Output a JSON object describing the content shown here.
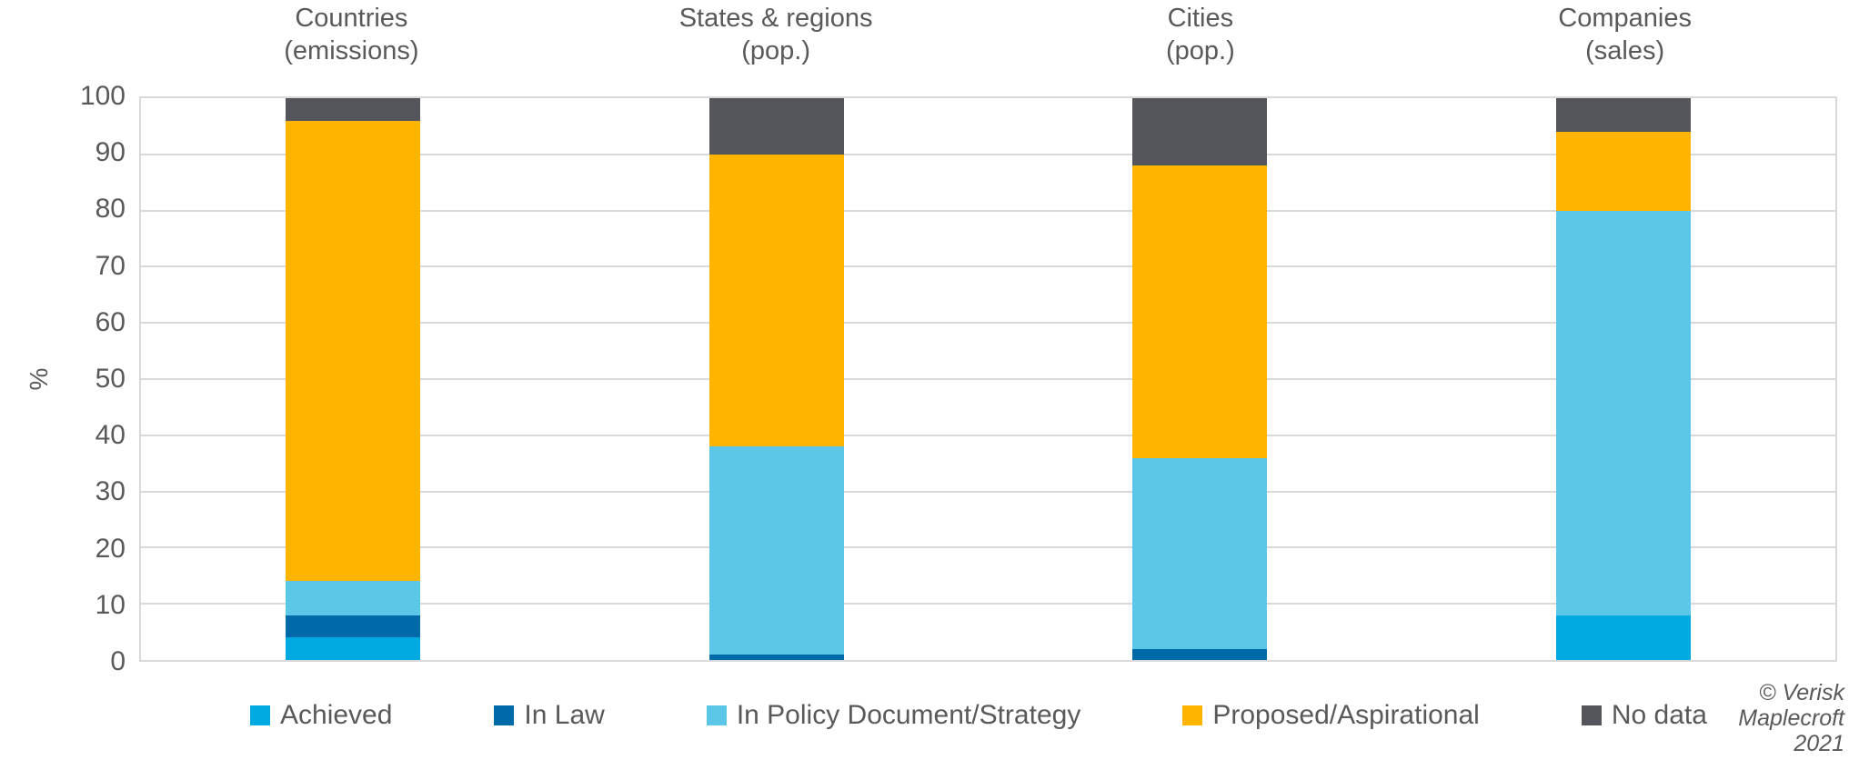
{
  "chart_data": {
    "type": "bar",
    "stacked": true,
    "title": "",
    "ylabel": "%",
    "ylim": [
      0,
      100
    ],
    "yticks": [
      0,
      10,
      20,
      30,
      40,
      50,
      60,
      70,
      80,
      90,
      100
    ],
    "grid": true,
    "legend_position": "bottom",
    "categories": [
      {
        "line1": "Countries",
        "line2": "(emissions)"
      },
      {
        "line1": "States & regions",
        "line2": "(pop.)"
      },
      {
        "line1": "Cities",
        "line2": "(pop.)"
      },
      {
        "line1": "Companies",
        "line2": "(sales)"
      }
    ],
    "series": [
      {
        "name": "Achieved",
        "color": "#00A9E0",
        "values": [
          4,
          0,
          0,
          8
        ]
      },
      {
        "name": "In Law",
        "color": "#0069A7",
        "values": [
          4,
          1,
          2,
          0
        ]
      },
      {
        "name": "In Policy Document/Strategy",
        "color": "#5BC6E8",
        "values": [
          6,
          37,
          34,
          72
        ]
      },
      {
        "name": "Proposed/Aspirational",
        "color": "#FFB400",
        "values": [
          82,
          52,
          52,
          14
        ]
      },
      {
        "name": "No data",
        "color": "#54565B",
        "values": [
          4,
          10,
          12,
          6
        ]
      }
    ]
  },
  "footer": {
    "copyright_lines": [
      "© Verisk",
      "Maplecroft",
      "2021"
    ]
  },
  "colors": {
    "text": "#58595B",
    "gridline": "#D9D9D9",
    "plot_border": "#D9D9D9"
  }
}
